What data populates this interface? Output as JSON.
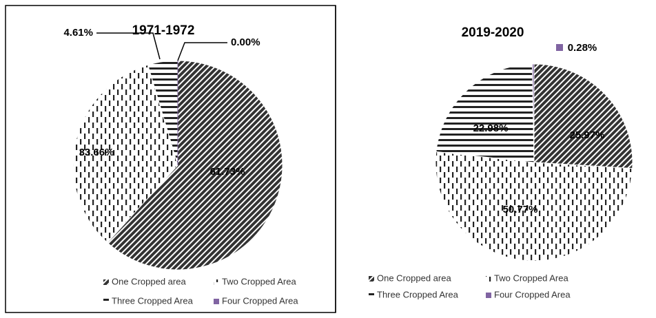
{
  "chart_data": [
    {
      "type": "pie",
      "title": "1971-1972",
      "categories": [
        "One Cropped area",
        "Two Cropped Area",
        "Three Cropped Area",
        "Four Cropped Area"
      ],
      "values": [
        61.73,
        33.66,
        4.61,
        0.0
      ],
      "value_labels": [
        "61.73%",
        "33.66%",
        "4.61%",
        "0.00%"
      ],
      "colors": [
        "#333333",
        "#333333",
        "#333333",
        "#8064a2"
      ],
      "patterns": [
        "diagonal",
        "vertical-dash",
        "horizontal",
        "solid"
      ]
    },
    {
      "type": "pie",
      "title": "2019-2020",
      "categories": [
        "One Cropped area",
        "Two Cropped Area",
        "Three Cropped Area",
        "Four Cropped Area"
      ],
      "values": [
        25.97,
        50.77,
        22.98,
        0.28
      ],
      "value_labels": [
        "25.97%",
        "50.77%",
        "22.98%",
        "0.28%"
      ],
      "colors": [
        "#333333",
        "#333333",
        "#333333",
        "#8064a2"
      ],
      "patterns": [
        "diagonal",
        "vertical-dash",
        "horizontal",
        "solid"
      ]
    }
  ]
}
